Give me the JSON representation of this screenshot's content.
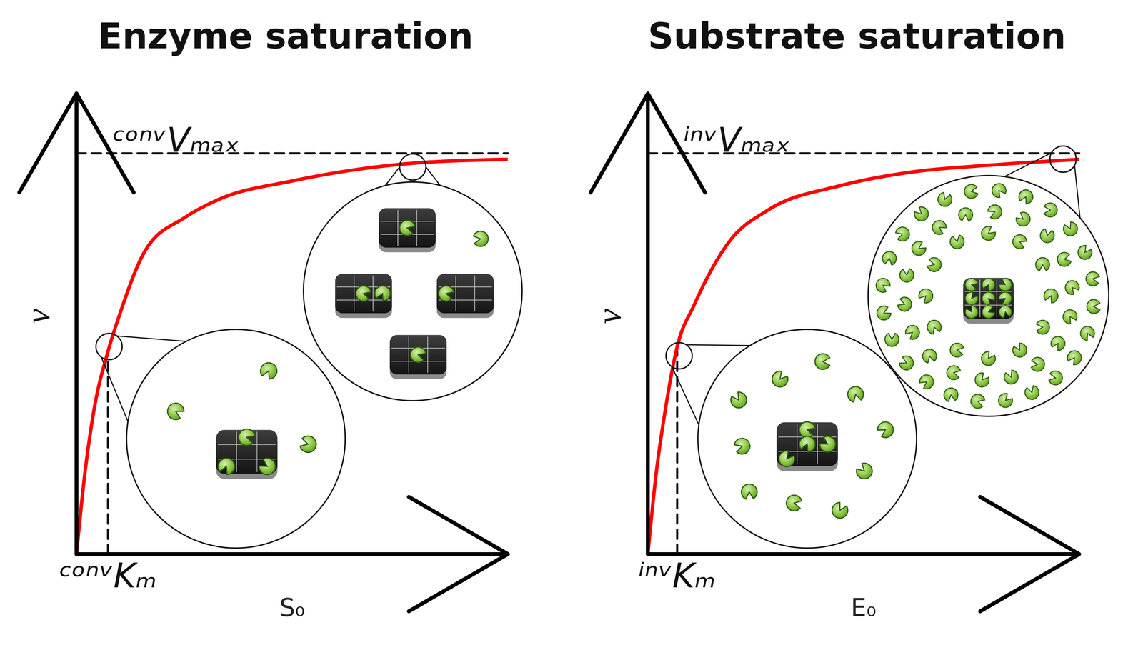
{
  "chart_data": [
    {
      "type": "line",
      "title": "Enzyme saturation",
      "x_label": "S₀",
      "y_label": "v",
      "x": [
        0,
        2,
        4,
        7.3,
        10,
        16,
        25,
        33,
        50,
        65,
        80,
        100
      ],
      "values": [
        0,
        18,
        31,
        44,
        52,
        66,
        73,
        77,
        81,
        83.5,
        85,
        85.7
      ],
      "color": "#ff0000",
      "xlim": [
        0,
        100
      ],
      "ylim": [
        0,
        100
      ],
      "xticks": [
        {
          "value": 7.3,
          "label": "ᶜᵒⁿᵛKₘ"
        }
      ],
      "yticks": [],
      "reference_lines": [
        {
          "axis": "y",
          "value": 87,
          "label": "ᶜᵒⁿᵛVₘₐₓ"
        },
        {
          "axis": "x",
          "value": 7.3,
          "to": 44
        }
      ]
    },
    {
      "type": "line",
      "title": "Substrate saturation",
      "x_label": "E₀",
      "y_label": "v",
      "x": [
        0,
        2,
        4,
        6.8,
        10.7,
        19,
        27.7,
        44.7,
        61.7,
        78.7,
        100
      ],
      "values": [
        0,
        18,
        31,
        45,
        54,
        68,
        74.6,
        80,
        83,
        84.4,
        85.7
      ],
      "color": "#ff0000",
      "xlim": [
        0,
        100
      ],
      "ylim": [
        0,
        100
      ],
      "xticks": [
        {
          "value": 6.8,
          "label": "ⁱⁿᵛKₘ"
        }
      ],
      "yticks": [],
      "reference_lines": [
        {
          "axis": "y",
          "value": 87,
          "label": "ⁱⁿᵛVₘₐₓ"
        },
        {
          "axis": "x",
          "value": 6.8,
          "to": 45
        }
      ]
    }
  ]
}
